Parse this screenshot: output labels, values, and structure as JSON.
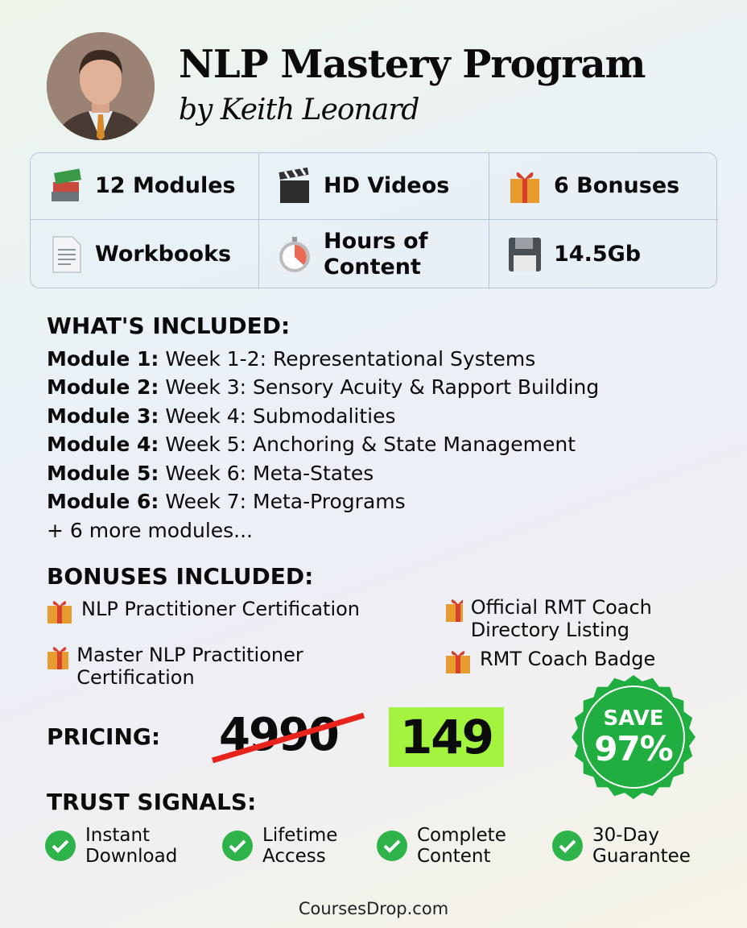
{
  "header": {
    "title": "NLP Mastery Program",
    "subtitle": "by Keith Leonard"
  },
  "features": [
    {
      "icon": "books-icon",
      "label": "12 Modules"
    },
    {
      "icon": "clapper-board-icon",
      "label": "HD Videos"
    },
    {
      "icon": "gift-icon",
      "label": "6 Bonuses"
    },
    {
      "icon": "document-icon",
      "label": "Workbooks"
    },
    {
      "icon": "stopwatch-icon",
      "label": "Hours of Content"
    },
    {
      "icon": "floppy-disk-icon",
      "label": "14.5Gb"
    }
  ],
  "included": {
    "heading": "WHAT'S INCLUDED:",
    "modules": [
      {
        "label": "Module 1:",
        "text": " Week 1-2: Representational Systems"
      },
      {
        "label": "Module 2:",
        "text": " Week 3: Sensory Acuity & Rapport Building"
      },
      {
        "label": "Module 3:",
        "text": " Week 4: Submodalities"
      },
      {
        "label": "Module 4:",
        "text": " Week 5: Anchoring & State Management"
      },
      {
        "label": "Module 5:",
        "text": " Week 6: Meta-States"
      },
      {
        "label": "Module 6:",
        "text": " Week 7: Meta-Programs"
      }
    ],
    "more": "+ 6 more modules..."
  },
  "bonuses": {
    "heading": "BONUSES INCLUDED:",
    "items": [
      "NLP Practitioner Certification",
      "Master NLP Practitioner Certification",
      "Official RMT Coach Directory Listing",
      "RMT Coach Badge"
    ]
  },
  "pricing": {
    "label": "PRICING:",
    "old_price": "4990",
    "new_price": "149",
    "badge_top": "SAVE",
    "badge_value": "97%",
    "colors": {
      "new_price_bg": "#a4f43f",
      "badge": "#1fae3f",
      "strike": "#e8231c"
    }
  },
  "trust": {
    "heading": "TRUST SIGNALS:",
    "items": [
      [
        "Instant",
        "Download"
      ],
      [
        "Lifetime",
        "Access"
      ],
      [
        "Complete",
        "Content"
      ],
      [
        "30-Day",
        "Guarantee"
      ]
    ]
  },
  "footer": "CoursesDrop.com"
}
